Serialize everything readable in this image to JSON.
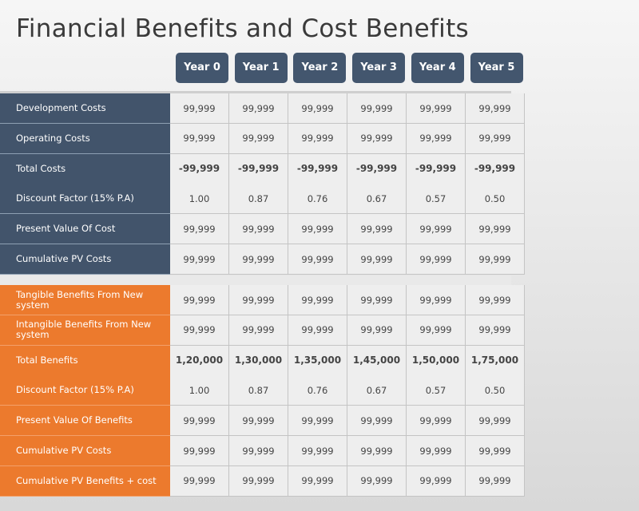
{
  "title": "Financial Benefits and Cost Benefits",
  "years": [
    "Year 0",
    "Year 1",
    "Year 2",
    "Year 3",
    "Year 4",
    "Year 5"
  ],
  "costs": [
    {
      "label": "Development  Costs",
      "values": [
        "99,999",
        "99,999",
        "99,999",
        "99,999",
        "99,999",
        "99,999"
      ]
    },
    {
      "label": "Operating Costs",
      "values": [
        "99,999",
        "99,999",
        "99,999",
        "99,999",
        "99,999",
        "99,999"
      ]
    },
    {
      "label": "Total Costs",
      "bold": true,
      "values": [
        "-99,999",
        "-99,999",
        "-99,999",
        "-99,999",
        "-99,999",
        "-99,999"
      ]
    },
    {
      "label": "Discount Factor (15% P.A)",
      "values": [
        "1.00",
        "0.87",
        "0.76",
        "0.67",
        "0.57",
        "0.50"
      ]
    },
    {
      "label": "Present Value Of Cost",
      "values": [
        "99,999",
        "99,999",
        "99,999",
        "99,999",
        "99,999",
        "99,999"
      ]
    },
    {
      "label": "Cumulative PV Costs",
      "values": [
        "99,999",
        "99,999",
        "99,999",
        "99,999",
        "99,999",
        "99,999"
      ]
    }
  ],
  "benefits": [
    {
      "label": "Tangible Benefits From New system",
      "values": [
        "99,999",
        "99,999",
        "99,999",
        "99,999",
        "99,999",
        "99,999"
      ]
    },
    {
      "label": "Intangible Benefits From New system",
      "values": [
        "99,999",
        "99,999",
        "99,999",
        "99,999",
        "99,999",
        "99,999"
      ]
    },
    {
      "label": "Total Benefits",
      "bold": true,
      "values": [
        "1,20,000",
        "1,30,000",
        "1,35,000",
        "1,45,000",
        "1,50,000",
        "1,75,000"
      ]
    },
    {
      "label": "Discount Factor (15% P.A)",
      "values": [
        "1.00",
        "0.87",
        "0.76",
        "0.67",
        "0.57",
        "0.50"
      ]
    },
    {
      "label": "Present Value Of Benefits",
      "values": [
        "99,999",
        "99,999",
        "99,999",
        "99,999",
        "99,999",
        "99,999"
      ]
    },
    {
      "label": "Cumulative  PV Costs",
      "values": [
        "99,999",
        "99,999",
        "99,999",
        "99,999",
        "99,999",
        "99,999"
      ]
    },
    {
      "label": "Cumulative  PV Benefits + cost",
      "values": [
        "99,999",
        "99,999",
        "99,999",
        "99,999",
        "99,999",
        "99,999"
      ]
    }
  ],
  "colors": {
    "cost_label_bg": "#42546b",
    "benefit_label_bg": "#ec7a2d",
    "header_bg": "#43566e"
  }
}
